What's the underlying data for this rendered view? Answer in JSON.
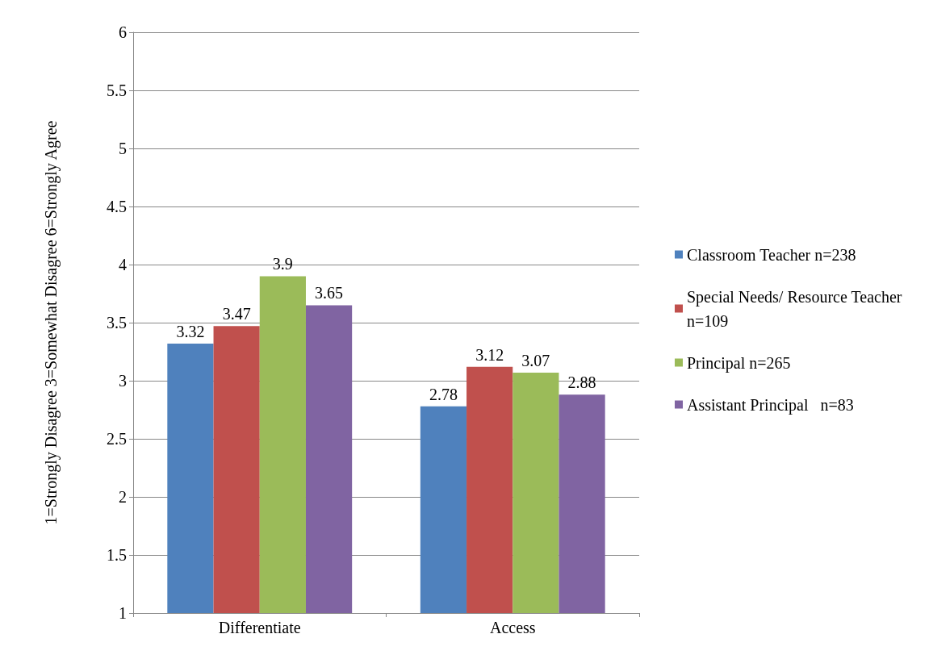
{
  "chart_data": {
    "type": "bar",
    "ylabel": "1=Strongly Disagree 3=Somewhat Disagree 6=Strongly Agree",
    "categories": [
      "Differentiate",
      "Access"
    ],
    "series": [
      {
        "name": "Classroom Teacher n=238",
        "color": "#4f81bd",
        "values": [
          3.32,
          2.78
        ]
      },
      {
        "name": "Special Needs/ Resource Teacher n=109",
        "color": "#c0504d",
        "values": [
          3.47,
          3.12
        ]
      },
      {
        "name": "Principal n=265",
        "color": "#9bbb59",
        "values": [
          3.9,
          3.07
        ]
      },
      {
        "name": "Assistant Principal   n=83",
        "color": "#8064a2",
        "values": [
          3.65,
          2.88
        ]
      }
    ],
    "ylim": [
      1,
      6
    ],
    "yticks": [
      1,
      1.5,
      2,
      2.5,
      3,
      3.5,
      4,
      4.5,
      5,
      5.5,
      6
    ],
    "grid": "y",
    "legend": "right",
    "data_labels": true
  }
}
